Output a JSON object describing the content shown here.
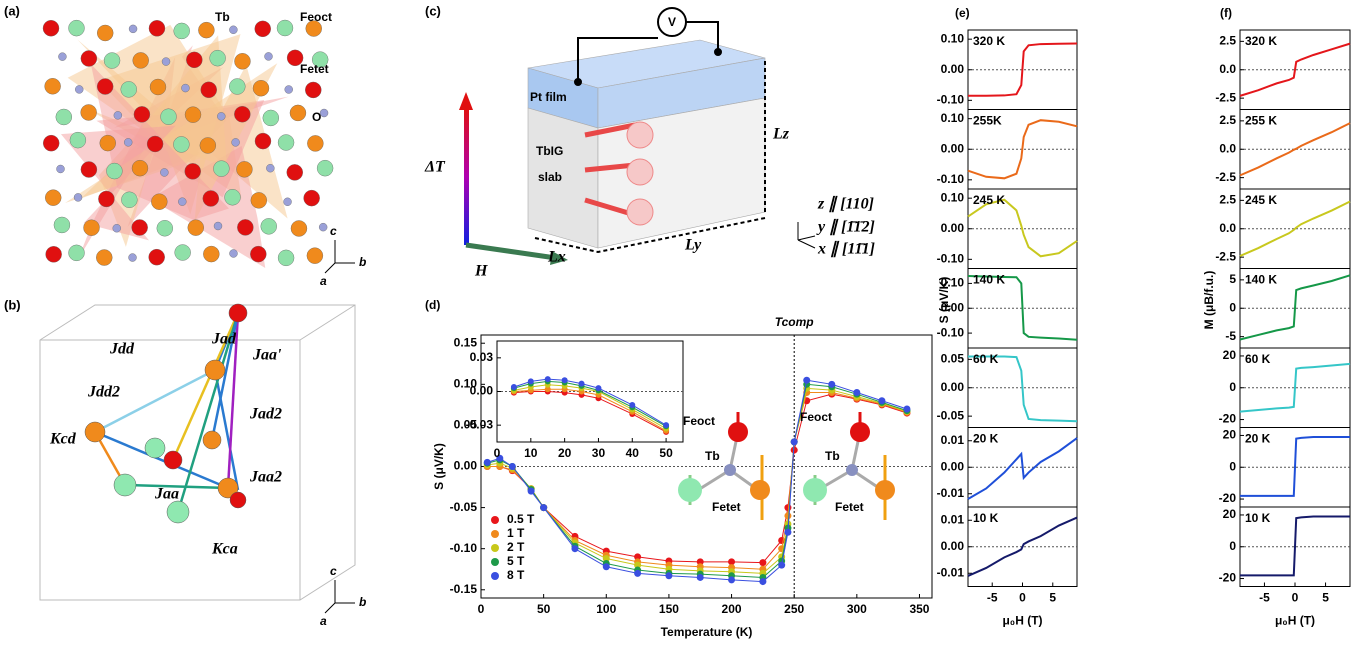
{
  "diagrams": {
    "a": {
      "panel": "(a)",
      "labels": [
        "Tb",
        "Feoct",
        "Fetet",
        "O"
      ],
      "axes": [
        "c",
        "a",
        "b"
      ]
    },
    "b": {
      "panel": "(b)",
      "labels": [
        "Jdd",
        "Jad",
        "Jdd2",
        "Jaa'",
        "Kcd",
        "Jad2",
        "Jaa2",
        "Jaa",
        "Kca"
      ],
      "axes": [
        "c",
        "a",
        "b"
      ]
    },
    "c": {
      "panel": "(c)",
      "voltmeter": "V",
      "film": "Pt film",
      "slab": [
        "TbIG",
        "slab"
      ],
      "gradient": "ΔT",
      "field": "H",
      "lengths": [
        "Lx",
        "Ly",
        "Lz"
      ],
      "axes": [
        "z ∥ [110]",
        "y ∥ [1̄1̄2]",
        "x ∥ [11̄1]"
      ]
    },
    "d_spins": [
      [
        "Feoct",
        "Tb",
        "Fetet"
      ],
      [
        "Feoct",
        "Tb",
        "Fetet"
      ]
    ]
  },
  "chart_data": [
    {
      "type": "line",
      "panel": "(d)",
      "xlabel": "Temperature (K)",
      "ylabel": "S (μV/K)",
      "markers": true,
      "legend": "lower left",
      "xlim": [
        0,
        360
      ],
      "xticks": [
        0,
        50,
        100,
        150,
        200,
        250,
        300,
        350
      ],
      "ylim": [
        -0.16,
        0.16
      ],
      "yticks": [
        0.15,
        {
          "value": 0.1,
          "label": "0.10"
        },
        0.05,
        {
          "value": 0,
          "label": "0.00"
        },
        -0.05,
        {
          "value": -0.1,
          "label": "-0.10"
        },
        -0.15
      ],
      "annotations": [
        {
          "text": "Tcomp",
          "x": 250
        }
      ],
      "x": [
        5,
        15,
        25,
        40,
        50,
        75,
        100,
        125,
        150,
        175,
        200,
        225,
        240,
        245,
        250,
        260,
        280,
        300,
        320,
        340
      ],
      "series": [
        {
          "name": "0.5 T",
          "color": "#e8161b",
          "values": [
            0,
            0,
            -0.005,
            -0.027,
            -0.05,
            -0.085,
            -0.103,
            -0.11,
            -0.115,
            -0.116,
            -0.116,
            -0.117,
            -0.09,
            -0.05,
            0.02,
            0.08,
            0.088,
            0.082,
            0.075,
            0.065
          ]
        },
        {
          "name": "1 T",
          "color": "#f08a1c",
          "values": [
            0,
            0,
            -0.004,
            -0.027,
            -0.05,
            -0.09,
            -0.108,
            -0.116,
            -0.12,
            -0.122,
            -0.123,
            -0.125,
            -0.1,
            -0.06,
            0.03,
            0.09,
            0.09,
            0.083,
            0.076,
            0.066
          ]
        },
        {
          "name": "2 T",
          "color": "#c8c81a",
          "values": [
            0.002,
            0.004,
            -0.002,
            -0.027,
            -0.05,
            -0.093,
            -0.112,
            -0.12,
            -0.125,
            -0.127,
            -0.128,
            -0.13,
            -0.11,
            -0.07,
            0.03,
            0.095,
            0.093,
            0.085,
            0.077,
            0.067
          ]
        },
        {
          "name": "5 T",
          "color": "#1e9a4a",
          "values": [
            0.004,
            0.008,
            0,
            -0.028,
            -0.05,
            -0.097,
            -0.118,
            -0.126,
            -0.13,
            -0.131,
            -0.133,
            -0.135,
            -0.115,
            -0.075,
            0.03,
            0.1,
            0.097,
            0.088,
            0.078,
            0.068
          ]
        },
        {
          "name": "8 T",
          "color": "#3a4fe0",
          "values": [
            0.005,
            0.01,
            0,
            -0.03,
            -0.05,
            -0.1,
            -0.122,
            -0.13,
            -0.133,
            -0.135,
            -0.138,
            -0.14,
            -0.12,
            -0.08,
            0.03,
            0.105,
            0.1,
            0.09,
            0.08,
            0.07
          ]
        }
      ]
    },
    {
      "type": "line",
      "markers": true,
      "xlim": [
        0,
        55
      ],
      "xticks": [
        0,
        10,
        20,
        30,
        40,
        50
      ],
      "ylim": [
        -0.045,
        0.045
      ],
      "yticks": [
        0.03,
        {
          "value": 0,
          "label": "0.00"
        },
        -0.03
      ],
      "x": [
        5,
        10,
        15,
        20,
        25,
        30,
        40,
        50
      ],
      "series": [
        {
          "color": "#e8161b",
          "values": [
            -0.001,
            0,
            0,
            -0.001,
            -0.003,
            -0.006,
            -0.02,
            -0.036
          ]
        },
        {
          "color": "#f08a1c",
          "values": [
            0,
            0.001,
            0.002,
            0.002,
            0,
            -0.003,
            -0.018,
            -0.035
          ]
        },
        {
          "color": "#c8c81a",
          "values": [
            0.001,
            0.004,
            0.006,
            0.005,
            0.003,
            0,
            -0.016,
            -0.033
          ]
        },
        {
          "color": "#1e9a4a",
          "values": [
            0.003,
            0.007,
            0.009,
            0.008,
            0.005,
            0.001,
            -0.014,
            -0.031
          ]
        },
        {
          "color": "#3a4fe0",
          "values": [
            0.004,
            0.009,
            0.011,
            0.01,
            0.007,
            0.003,
            -0.012,
            -0.03
          ]
        }
      ]
    },
    {
      "type": "line",
      "panel": "(e)",
      "label": "320 K",
      "color": "#e4161b",
      "xlim": [
        -9,
        9
      ],
      "ylim": [
        -0.13,
        0.13
      ],
      "yticks": [
        {
          "value": 0.1,
          "label": "0.10"
        },
        {
          "value": 0,
          "label": "0.00"
        },
        {
          "value": -0.1,
          "label": "-0.10"
        }
      ],
      "x": [
        -9,
        -6,
        -3,
        -1,
        -0.2,
        0.2,
        1,
        3,
        6,
        9
      ],
      "values": [
        -0.085,
        -0.085,
        -0.084,
        -0.08,
        -0.05,
        0.06,
        0.08,
        0.084,
        0.085,
        0.086
      ]
    },
    {
      "type": "line",
      "label": "255K",
      "color": "#ea6a1a",
      "xlim": [
        -9,
        9
      ],
      "ylim": [
        -0.13,
        0.13
      ],
      "yticks": [
        {
          "value": 0.1,
          "label": "0.10"
        },
        {
          "value": 0,
          "label": "0.00"
        },
        {
          "value": -0.1,
          "label": "-0.10"
        }
      ],
      "x": [
        -9,
        -6,
        -3,
        -1,
        -0.2,
        0.2,
        1,
        3,
        6,
        9
      ],
      "values": [
        -0.07,
        -0.09,
        -0.095,
        -0.08,
        -0.03,
        0.04,
        0.08,
        0.095,
        0.09,
        0.075
      ]
    },
    {
      "type": "line",
      "label": "245 K",
      "color": "#c8c81e",
      "xlim": [
        -9,
        9
      ],
      "ylim": [
        -0.13,
        0.13
      ],
      "yticks": [
        {
          "value": 0.1,
          "label": "0.10"
        },
        {
          "value": 0,
          "label": "0.00"
        },
        {
          "value": -0.1,
          "label": "-0.10"
        }
      ],
      "x": [
        -9,
        -6,
        -3,
        -1,
        -0.2,
        0.2,
        1,
        3,
        6,
        9
      ],
      "values": [
        0.04,
        0.08,
        0.095,
        0.06,
        0.01,
        -0.02,
        -0.06,
        -0.09,
        -0.08,
        -0.04
      ]
    },
    {
      "type": "line",
      "label": "140 K",
      "ylabel": "S (μV/K)",
      "color": "#159848",
      "xlim": [
        -9,
        9
      ],
      "ylim": [
        -0.16,
        0.16
      ],
      "yticks": [
        {
          "value": 0.1,
          "label": "0.10"
        },
        {
          "value": 0,
          "label": "0.00"
        },
        {
          "value": -0.1,
          "label": "-0.10"
        }
      ],
      "x": [
        -9,
        -6,
        -3,
        -1,
        -0.2,
        0.2,
        1,
        3,
        6,
        9
      ],
      "values": [
        0.13,
        0.128,
        0.126,
        0.125,
        0.1,
        -0.1,
        -0.115,
        -0.118,
        -0.122,
        -0.127
      ]
    },
    {
      "type": "line",
      "label": "60 K",
      "color": "#35c6c8",
      "xlim": [
        -9,
        9
      ],
      "ylim": [
        -0.07,
        0.07
      ],
      "yticks": [
        0.05,
        {
          "value": 0,
          "label": "0.00"
        },
        -0.05
      ],
      "x": [
        -9,
        -6,
        -3,
        -1,
        -0.2,
        0.2,
        1,
        3,
        6,
        9
      ],
      "values": [
        0.055,
        0.055,
        0.055,
        0.054,
        0.03,
        -0.03,
        -0.055,
        -0.057,
        -0.058,
        -0.059
      ]
    },
    {
      "type": "line",
      "label": "20 K",
      "color": "#1f4fd8",
      "xlim": [
        -9,
        9
      ],
      "ylim": [
        -0.015,
        0.015
      ],
      "yticks": [
        {
          "value": 0.01,
          "label": "0.01"
        },
        {
          "value": 0,
          "label": "0.00"
        },
        {
          "value": -0.01,
          "label": "-0.01"
        }
      ],
      "x": [
        -9,
        -6,
        -3,
        -1,
        -0.2,
        0.2,
        1,
        3,
        6,
        9
      ],
      "values": [
        -0.012,
        -0.008,
        -0.002,
        0.003,
        0.005,
        -0.004,
        -0.002,
        0.002,
        0.006,
        0.011
      ]
    },
    {
      "type": "line",
      "label": "10 K",
      "xlabel": "μ₀H (T)",
      "color": "#151a6a",
      "xlim": [
        -9,
        9
      ],
      "xticks": [
        -5,
        0,
        5
      ],
      "ylim": [
        -0.015,
        0.015
      ],
      "yticks": [
        {
          "value": 0.01,
          "label": "0.01"
        },
        {
          "value": 0,
          "label": "0.00"
        },
        {
          "value": -0.01,
          "label": "-0.01"
        }
      ],
      "x": [
        -9,
        -6,
        -3,
        -1,
        -0.2,
        0.2,
        1,
        3,
        6,
        9
      ],
      "values": [
        -0.011,
        -0.008,
        -0.004,
        -0.002,
        -0.001,
        0.001,
        0.002,
        0.004,
        0.008,
        0.011
      ]
    },
    {
      "type": "line",
      "panel": "(f)",
      "label": "320 K",
      "color": "#e4161b",
      "xlim": [
        -9,
        9
      ],
      "ylim": [
        -3.5,
        3.5
      ],
      "yticks": [
        2.5,
        {
          "value": 0,
          "label": "0.0"
        },
        -2.5
      ],
      "x": [
        -9,
        -6,
        -3,
        -1,
        -0.2,
        0.2,
        1,
        3,
        6,
        9
      ],
      "values": [
        -2.3,
        -1.8,
        -1.2,
        -0.9,
        -0.7,
        0.7,
        0.9,
        1.3,
        1.8,
        2.3
      ]
    },
    {
      "type": "line",
      "label": "255 K",
      "color": "#ea6a1a",
      "xlim": [
        -9,
        9
      ],
      "ylim": [
        -3.5,
        3.5
      ],
      "yticks": [
        2.5,
        {
          "value": 0,
          "label": "0.0"
        },
        -2.5
      ],
      "x": [
        -9,
        -6,
        -3,
        -1,
        -0.2,
        0.2,
        1,
        3,
        6,
        9
      ],
      "values": [
        -2.3,
        -1.6,
        -0.8,
        -0.3,
        -0.05,
        0.05,
        0.3,
        0.8,
        1.5,
        2.3
      ]
    },
    {
      "type": "line",
      "label": "245 K",
      "color": "#c8c81e",
      "xlim": [
        -9,
        9
      ],
      "ylim": [
        -3.5,
        3.5
      ],
      "yticks": [
        2.5,
        {
          "value": 0,
          "label": "0.0"
        },
        -2.5
      ],
      "x": [
        -9,
        -6,
        -3,
        -1,
        -0.2,
        0.2,
        1,
        3,
        6,
        9
      ],
      "values": [
        -2.4,
        -1.7,
        -0.9,
        -0.4,
        -0.1,
        0.1,
        0.4,
        0.9,
        1.6,
        2.4
      ]
    },
    {
      "type": "line",
      "label": "140 K",
      "ylabel": "M (μB/f.u.)",
      "color": "#159848",
      "xlim": [
        -9,
        9
      ],
      "ylim": [
        -7,
        7
      ],
      "yticks": [
        5,
        0,
        -5
      ],
      "x": [
        -9,
        -6,
        -3,
        -1,
        -0.2,
        0.2,
        1,
        3,
        6,
        9
      ],
      "values": [
        -5.5,
        -4.7,
        -3.9,
        -3.5,
        -3.2,
        3.2,
        3.5,
        4,
        4.8,
        5.8
      ]
    },
    {
      "type": "line",
      "label": "60 K",
      "color": "#35c6c8",
      "xlim": [
        -9,
        9
      ],
      "ylim": [
        -25,
        25
      ],
      "yticks": [
        20,
        0,
        -20
      ],
      "x": [
        -9,
        -6,
        -3,
        -1,
        -0.2,
        0.2,
        1,
        3,
        6,
        9
      ],
      "values": [
        -15,
        -14,
        -13,
        -12.5,
        -12,
        12,
        12.5,
        13,
        14,
        15
      ]
    },
    {
      "type": "line",
      "label": "20 K",
      "color": "#1f4fd8",
      "xlim": [
        -9,
        9
      ],
      "ylim": [
        -25,
        25
      ],
      "yticks": [
        20,
        0,
        -20
      ],
      "x": [
        -9,
        -6,
        -3,
        -1,
        -0.2,
        0.2,
        1,
        3,
        6,
        9
      ],
      "values": [
        -18,
        -18,
        -18,
        -18,
        -18,
        18,
        18.5,
        19,
        19,
        19
      ]
    },
    {
      "type": "line",
      "label": "10 K",
      "xlabel": "μ₀H (T)",
      "color": "#151a6a",
      "xlim": [
        -9,
        9
      ],
      "xticks": [
        -5,
        0,
        5
      ],
      "ylim": [
        -25,
        25
      ],
      "yticks": [
        20,
        0,
        -20
      ],
      "x": [
        -9,
        -6,
        -3,
        -1,
        -0.2,
        0.2,
        1,
        3,
        6,
        9
      ],
      "values": [
        -18,
        -18,
        -18,
        -18,
        -18,
        18,
        18.5,
        19,
        19,
        19
      ]
    }
  ]
}
